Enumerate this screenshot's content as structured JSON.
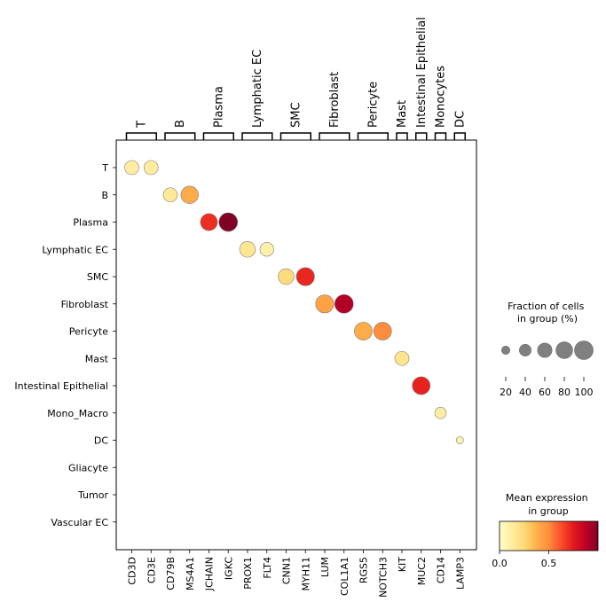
{
  "chart_data": {
    "type": "scatter",
    "subtype": "dotplot",
    "genes": [
      "CD3D",
      "CD3E",
      "CD79B",
      "MS4A1",
      "JCHAIN",
      "IGKC",
      "PROX1",
      "FLT4",
      "CNN1",
      "MYH11",
      "LUM",
      "COL1A1",
      "RGS5",
      "NOTCH3",
      "KIT",
      "MUC2",
      "CD14",
      "LAMP3"
    ],
    "groups": [
      "T",
      "B",
      "Plasma",
      "Lymphatic EC",
      "SMC",
      "Fibroblast",
      "Pericyte",
      "Mast",
      "Intestinal Epithelial",
      "Mono_Macro",
      "DC",
      "Gliacyte",
      "Tumor",
      "Vascular EC"
    ],
    "gene_group_brackets": [
      {
        "label": "T",
        "start": 0,
        "end": 1
      },
      {
        "label": "B",
        "start": 2,
        "end": 3
      },
      {
        "label": "Plasma",
        "start": 4,
        "end": 5
      },
      {
        "label": "Lymphatic EC",
        "start": 6,
        "end": 7
      },
      {
        "label": "SMC",
        "start": 8,
        "end": 9
      },
      {
        "label": "Fibroblast",
        "start": 10,
        "end": 11
      },
      {
        "label": "Pericyte",
        "start": 12,
        "end": 13
      },
      {
        "label": "Mast",
        "start": 14,
        "end": 14
      },
      {
        "label": "Intestinal Epithelial",
        "start": 15,
        "end": 15
      },
      {
        "label": "Monocytes",
        "start": 16,
        "end": 16
      },
      {
        "label": "DC",
        "start": 17,
        "end": 17
      }
    ],
    "points": [
      {
        "gene": "CD3D",
        "group": "T",
        "fraction_pct": 58,
        "mean_expression": 0.12
      },
      {
        "gene": "CD3E",
        "group": "T",
        "fraction_pct": 58,
        "mean_expression": 0.13
      },
      {
        "gene": "CD79B",
        "group": "B",
        "fraction_pct": 58,
        "mean_expression": 0.15
      },
      {
        "gene": "MS4A1",
        "group": "B",
        "fraction_pct": 88,
        "mean_expression": 0.4
      },
      {
        "gene": "JCHAIN",
        "group": "Plasma",
        "fraction_pct": 84,
        "mean_expression": 0.7
      },
      {
        "gene": "IGKC",
        "group": "Plasma",
        "fraction_pct": 100,
        "mean_expression": 1.0
      },
      {
        "gene": "PROX1",
        "group": "Lymphatic EC",
        "fraction_pct": 72,
        "mean_expression": 0.17
      },
      {
        "gene": "FLT4",
        "group": "Lymphatic EC",
        "fraction_pct": 55,
        "mean_expression": 0.1
      },
      {
        "gene": "CNN1",
        "group": "SMC",
        "fraction_pct": 72,
        "mean_expression": 0.23
      },
      {
        "gene": "MYH11",
        "group": "SMC",
        "fraction_pct": 95,
        "mean_expression": 0.72
      },
      {
        "gene": "LUM",
        "group": "Fibroblast",
        "fraction_pct": 95,
        "mean_expression": 0.43
      },
      {
        "gene": "COL1A1",
        "group": "Fibroblast",
        "fraction_pct": 100,
        "mean_expression": 0.9
      },
      {
        "gene": "RGS5",
        "group": "Pericyte",
        "fraction_pct": 92,
        "mean_expression": 0.4
      },
      {
        "gene": "NOTCH3",
        "group": "Pericyte",
        "fraction_pct": 92,
        "mean_expression": 0.5
      },
      {
        "gene": "KIT",
        "group": "Mast",
        "fraction_pct": 58,
        "mean_expression": 0.18
      },
      {
        "gene": "MUC2",
        "group": "Intestinal Epithelial",
        "fraction_pct": 92,
        "mean_expression": 0.73
      },
      {
        "gene": "CD14",
        "group": "Mono_Macro",
        "fraction_pct": 38,
        "mean_expression": 0.12
      },
      {
        "gene": "LAMP3",
        "group": "DC",
        "fraction_pct": 15,
        "mean_expression": 0.07
      }
    ],
    "size_legend": {
      "title": "Fraction of cells\nin group (%)",
      "ticks": [
        20,
        40,
        60,
        80,
        100
      ]
    },
    "color_legend": {
      "title": "Mean expression\nin group",
      "ticks": [
        0.0,
        0.5
      ],
      "tick_labels": [
        "0.0",
        "0.5"
      ],
      "range": [
        0,
        1
      ],
      "colormap": "YlOrRd"
    },
    "grid": false
  }
}
